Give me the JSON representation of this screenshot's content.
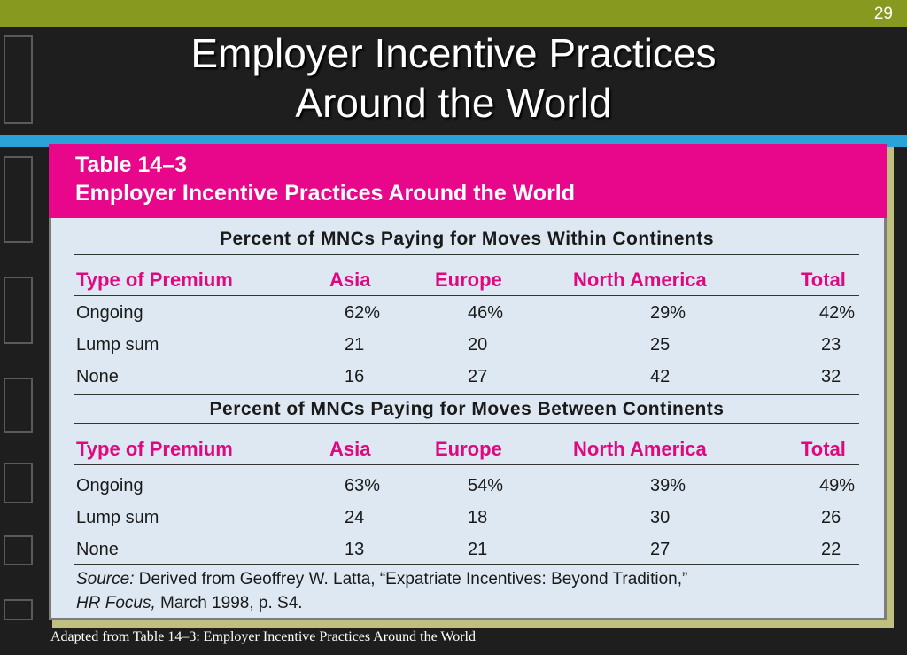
{
  "slide": {
    "page_number": "29",
    "title_line1": "Employer Incentive Practices",
    "title_line2": "Around the World",
    "caption": "Adapted from Table 14–3: Employer Incentive Practices Around the World"
  },
  "table": {
    "label": "Table 14–3",
    "title": "Employer Incentive Practices Around the World",
    "columns": [
      "Type of Premium",
      "Asia",
      "Europe",
      "North America",
      "Total"
    ],
    "sections": [
      {
        "heading": "Percent of MNCs Paying for Moves Within Continents",
        "rows": [
          [
            "Ongoing",
            "62%",
            "46%",
            "29%",
            "42%"
          ],
          [
            "Lump sum",
            "21",
            "20",
            "25",
            "23"
          ],
          [
            "None",
            "16",
            "27",
            "42",
            "32"
          ]
        ]
      },
      {
        "heading": "Percent of MNCs Paying for Moves Between Continents",
        "rows": [
          [
            "Ongoing",
            "63%",
            "54%",
            "39%",
            "49%"
          ],
          [
            "Lump sum",
            "24",
            "18",
            "30",
            "26"
          ],
          [
            "None",
            "13",
            "21",
            "27",
            "22"
          ]
        ]
      }
    ],
    "source_label": "Source:",
    "source_text": " Derived from Geoffrey W. Latta, “Expatriate Incentives: Beyond Tradition,”",
    "source_pub": "HR Focus,",
    "source_date": " March 1998, p. S4."
  },
  "colors": {
    "accent_green": "#879a1f",
    "accent_blue": "#2aa3d8",
    "accent_pink": "#e8068b"
  }
}
